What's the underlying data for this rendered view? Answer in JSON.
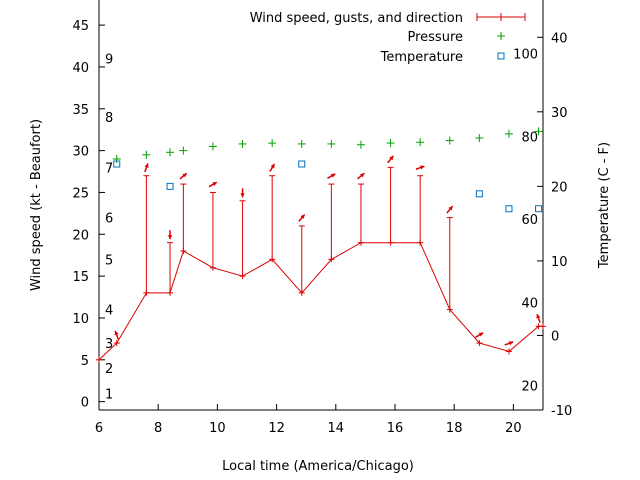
{
  "chart_data": {
    "type": "line",
    "xlabel": "Local time (America/Chicago)",
    "ylabel_left": "Wind speed (kt - Beaufort)",
    "ylabel_right": "Temperature (C - F)",
    "xlim": [
      6,
      21
    ],
    "xticks": [
      6,
      8,
      10,
      12,
      14,
      16,
      18,
      20
    ],
    "ylim_left": [
      -1,
      48
    ],
    "yticks_left": [
      0,
      5,
      10,
      15,
      20,
      25,
      30,
      35,
      40,
      45
    ],
    "ylim_right": [
      -10,
      45
    ],
    "yticks_right": [
      -10,
      0,
      10,
      20,
      30,
      40
    ],
    "beaufort_labels": [
      {
        "label": "1",
        "kt": 1
      },
      {
        "label": "2",
        "kt": 4
      },
      {
        "label": "3",
        "kt": 7
      },
      {
        "label": "4",
        "kt": 11
      },
      {
        "label": "5",
        "kt": 17
      },
      {
        "label": "6",
        "kt": 22
      },
      {
        "label": "7",
        "kt": 28
      },
      {
        "label": "8",
        "kt": 34
      },
      {
        "label": "9",
        "kt": 41
      }
    ],
    "fahrenheit_labels": [
      {
        "label": "20",
        "c": -6.7
      },
      {
        "label": "40",
        "c": 4.4
      },
      {
        "label": "60",
        "c": 15.6
      },
      {
        "label": "80",
        "c": 26.7
      },
      {
        "label": "100",
        "c": 37.8
      }
    ],
    "legend": {
      "wind": "Wind speed, gusts, and direction",
      "pressure": "Pressure",
      "temperature": "Temperature"
    },
    "wind": [
      {
        "t": 6.0,
        "speed": 5,
        "gust": null
      },
      {
        "t": 6.6,
        "speed": 7,
        "gust": null,
        "dir": 200
      },
      {
        "t": 7.6,
        "speed": 13,
        "gust": 27,
        "dir": 160
      },
      {
        "t": 8.4,
        "speed": 13,
        "gust": 19,
        "dir": 0
      },
      {
        "t": 8.85,
        "speed": 18,
        "gust": 26,
        "dir": 130
      },
      {
        "t": 9.85,
        "speed": 16,
        "gust": 25,
        "dir": 120
      },
      {
        "t": 10.85,
        "speed": 15,
        "gust": 24,
        "dir": 0
      },
      {
        "t": 11.85,
        "speed": 17,
        "gust": 27,
        "dir": 150
      },
      {
        "t": 12.85,
        "speed": 13,
        "gust": 21,
        "dir": 140
      },
      {
        "t": 13.85,
        "speed": 17,
        "gust": 26,
        "dir": 120
      },
      {
        "t": 14.85,
        "speed": 19,
        "gust": 26,
        "dir": 130
      },
      {
        "t": 15.85,
        "speed": 19,
        "gust": 28,
        "dir": 140
      },
      {
        "t": 16.85,
        "speed": 19,
        "gust": 27,
        "dir": 110
      },
      {
        "t": 17.85,
        "speed": 11,
        "gust": 22,
        "dir": 140
      },
      {
        "t": 18.85,
        "speed": 7,
        "gust": null,
        "dir": 120
      },
      {
        "t": 19.85,
        "speed": 6,
        "gust": null,
        "dir": 110
      },
      {
        "t": 20.85,
        "speed": 9,
        "gust": null,
        "dir": 200
      },
      {
        "t": 21.0,
        "speed": 9,
        "gust": null
      }
    ],
    "pressure": [
      {
        "t": 6.6,
        "kt": 29
      },
      {
        "t": 7.6,
        "kt": 29.5
      },
      {
        "t": 8.4,
        "kt": 29.8
      },
      {
        "t": 8.85,
        "kt": 30
      },
      {
        "t": 9.85,
        "kt": 30.5
      },
      {
        "t": 10.85,
        "kt": 30.8
      },
      {
        "t": 11.85,
        "kt": 30.9
      },
      {
        "t": 12.85,
        "kt": 30.8
      },
      {
        "t": 13.85,
        "kt": 30.8
      },
      {
        "t": 14.85,
        "kt": 30.7
      },
      {
        "t": 15.85,
        "kt": 30.9
      },
      {
        "t": 16.85,
        "kt": 31
      },
      {
        "t": 17.85,
        "kt": 31.2
      },
      {
        "t": 18.85,
        "kt": 31.5
      },
      {
        "t": 19.85,
        "kt": 32
      },
      {
        "t": 20.85,
        "kt": 32.3
      }
    ],
    "temperature": [
      {
        "t": 6.6,
        "c": 23
      },
      {
        "t": 8.4,
        "c": 20
      },
      {
        "t": 12.85,
        "c": 23
      },
      {
        "t": 18.85,
        "c": 19
      },
      {
        "t": 19.85,
        "c": 17
      },
      {
        "t": 20.85,
        "c": 17
      }
    ],
    "colors": {
      "wind": "#dd0000",
      "pressure": "#00a000",
      "temperature": "#0070c0",
      "axis": "#000000"
    }
  }
}
